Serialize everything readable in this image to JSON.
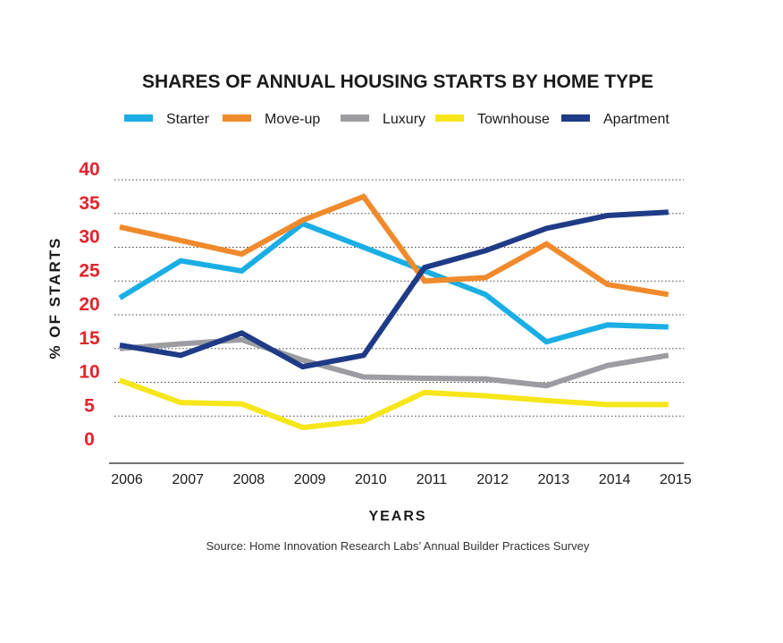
{
  "chart_data": {
    "type": "line",
    "title": "SHARES OF ANNUAL HOUSING STARTS BY HOME TYPE",
    "xlabel": "YEARS",
    "ylabel": "% OF STARTS",
    "source": "Source: Home Innovation Research Labs’ Annual Builder Practices Survey",
    "x": [
      "2006",
      "2007",
      "2008",
      "2009",
      "2010",
      "2011",
      "2012",
      "2013",
      "2014",
      "2015"
    ],
    "y_ticks": [
      "40",
      "35",
      "30",
      "25",
      "20",
      "15",
      "10",
      "5",
      "0"
    ],
    "ylim": [
      0,
      40
    ],
    "grid": "dotted horizontal",
    "legend_position": "top",
    "series": [
      {
        "name": "Starter",
        "color": "#1aaee5",
        "values": [
          22.5,
          28,
          26.5,
          33.5,
          30,
          26.5,
          23,
          16,
          18.5,
          18.2
        ]
      },
      {
        "name": "Move-up",
        "color": "#f08a2c",
        "values": [
          33,
          31,
          29,
          34,
          37.5,
          25,
          25.5,
          30.5,
          24.5,
          23
        ]
      },
      {
        "name": "Luxury",
        "color": "#9d9da1",
        "values": [
          15,
          15.7,
          16.3,
          13.3,
          10.8,
          10.6,
          10.5,
          9.5,
          12.5,
          14
        ]
      },
      {
        "name": "Townhouse",
        "color": "#f6e61a",
        "values": [
          10.3,
          7,
          6.8,
          3.3,
          4.3,
          8.5,
          8,
          7.3,
          6.7,
          6.7
        ]
      },
      {
        "name": "Apartment",
        "color": "#1f3b87",
        "values": [
          15.5,
          14,
          17.3,
          12.3,
          14,
          27,
          29.5,
          32.8,
          34.7,
          35.2
        ]
      }
    ]
  }
}
